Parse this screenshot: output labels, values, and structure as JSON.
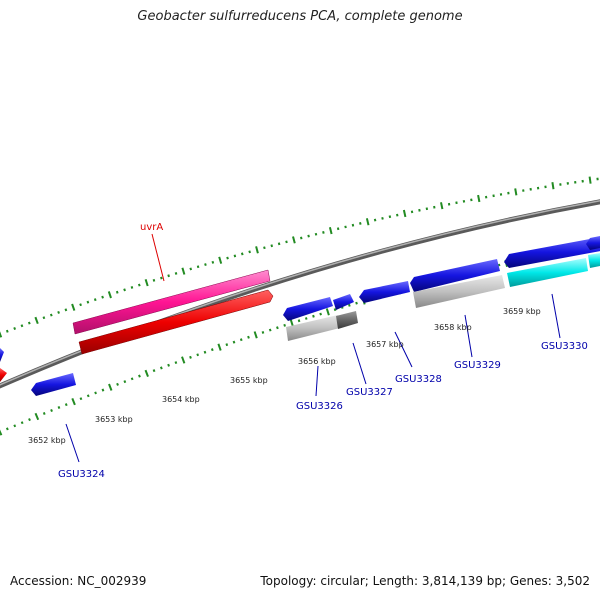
{
  "header": {
    "title": "Geobacter sulfurreducens PCA, complete genome"
  },
  "footer": {
    "accession": "Accession: NC_002939",
    "summary": "Topology: circular; Length: 3,814,139 bp; Genes: 3,502"
  },
  "colors": {
    "forward_gene": "#ff1493",
    "forward_red": "#ee0000",
    "gene_blue": "#1515e0",
    "gene_gray": "#b8b8b8",
    "gene_darkgray": "#666666",
    "gene_cyan": "#00e0e0",
    "tick_green": "#228b22",
    "label_blue": "#0000aa",
    "label_red": "#dd0000",
    "backbone": "#808080"
  },
  "scale_labels": [
    "3652 kbp",
    "3653 kbp",
    "3654 kbp",
    "3655 kbp",
    "3656 kbp",
    "3657 kbp",
    "3658 kbp",
    "3659 kbp"
  ],
  "gene_labels": [
    {
      "name": "uvrA",
      "color": "red"
    },
    {
      "name": "GSU3324",
      "color": "blue"
    },
    {
      "name": "GSU3326",
      "color": "blue"
    },
    {
      "name": "GSU3327",
      "color": "blue"
    },
    {
      "name": "GSU3328",
      "color": "blue"
    },
    {
      "name": "GSU3329",
      "color": "blue"
    },
    {
      "name": "GSU3330",
      "color": "blue"
    }
  ]
}
